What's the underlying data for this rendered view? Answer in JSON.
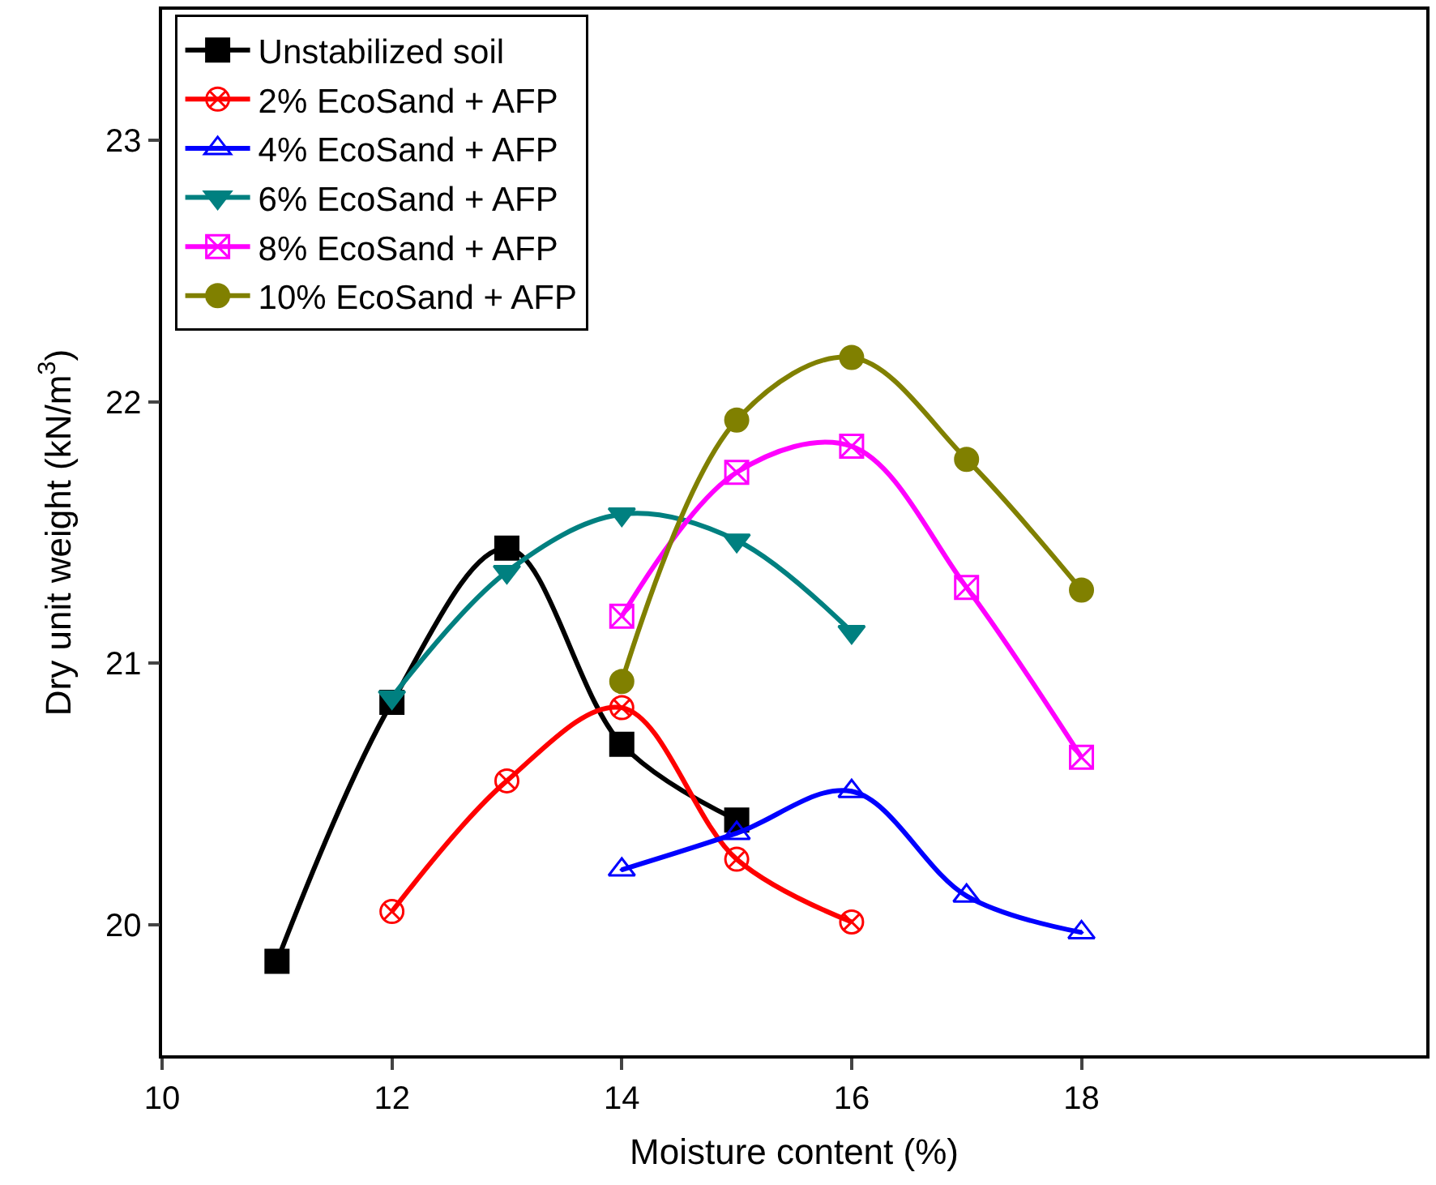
{
  "chart_data": {
    "type": "line",
    "xlabel": "Moisture content (%)",
    "ylabel": "Dry unit weight (kN/m$^{3}$)",
    "xlim": [
      10,
      21
    ],
    "xticks": [
      10,
      12,
      14,
      16,
      18
    ],
    "ylim": [
      19.5,
      23.5
    ],
    "yticks": [
      20,
      21,
      22,
      23
    ],
    "grid": false,
    "legend": "top left",
    "line_style": "solid",
    "series": [
      {
        "name": "Unstabilized soil",
        "color": "#000000",
        "marker": "square",
        "x": [
          11,
          12,
          13,
          14,
          15
        ],
        "values": [
          19.86,
          20.85,
          21.44,
          20.69,
          20.4
        ]
      },
      {
        "name": "2% EcoSand + AFP",
        "color": "#ff0000",
        "marker": "cross",
        "x": [
          12,
          13,
          14,
          15,
          16
        ],
        "values": [
          20.05,
          20.55,
          20.83,
          20.25,
          20.01
        ]
      },
      {
        "name": "4% EcoSand + AFP",
        "color": "#0000ff",
        "marker": "triangle",
        "x": [
          14,
          15,
          16,
          17,
          18
        ],
        "values": [
          20.21,
          20.35,
          20.51,
          20.11,
          19.97
        ]
      },
      {
        "name": "6% EcoSand + AFP",
        "color": "#008080",
        "marker": "triangle",
        "x": [
          12,
          13,
          14,
          15,
          16
        ],
        "values": [
          20.87,
          21.35,
          21.57,
          21.47,
          21.12
        ]
      },
      {
        "name": "8% EcoSand + AFP",
        "color": "#ff00ff",
        "marker": "cross",
        "x": [
          14,
          15,
          16,
          17,
          18
        ],
        "values": [
          21.18,
          21.73,
          21.83,
          21.29,
          20.64
        ]
      },
      {
        "name": "10% EcoSand + AFP",
        "color": "#808000",
        "marker": "circle",
        "x": [
          14,
          15,
          16,
          17,
          18
        ],
        "values": [
          20.93,
          21.93,
          22.17,
          21.78,
          21.28
        ]
      }
    ]
  }
}
